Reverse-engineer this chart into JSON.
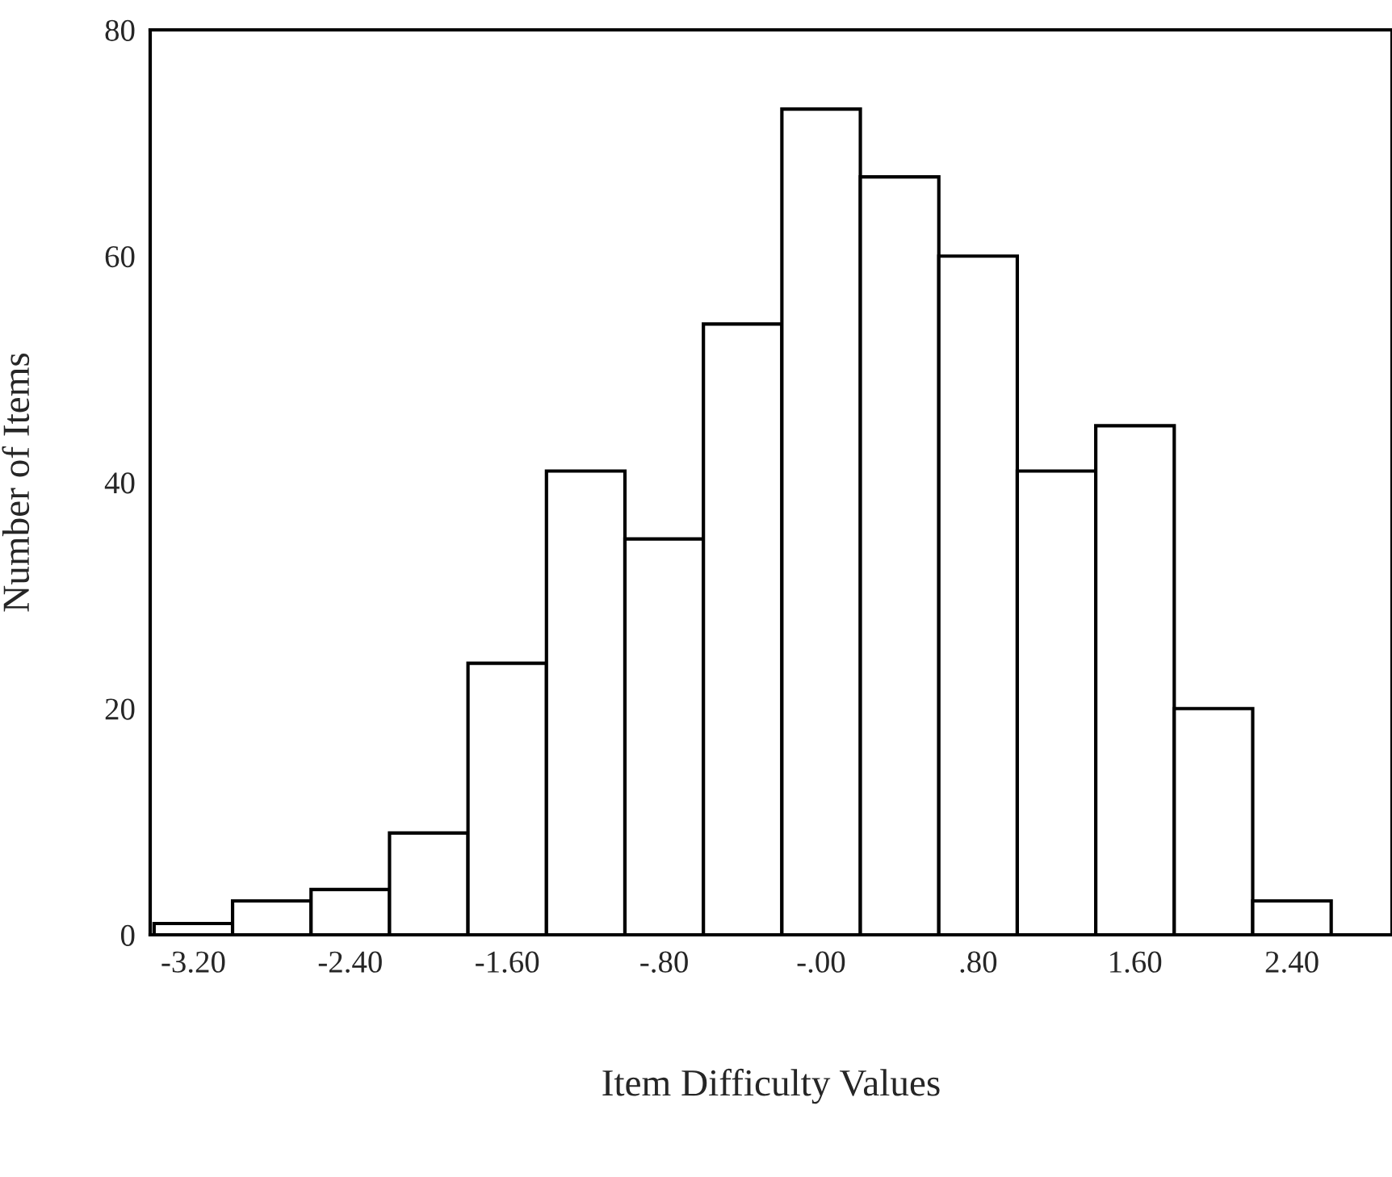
{
  "chart_data": {
    "type": "histogram",
    "xlabel": "Item Difficulty Values",
    "ylabel": "Number of Items",
    "bins": [
      -3.4,
      -3.0,
      -2.6,
      -2.2,
      -1.8,
      -1.4,
      -1.0,
      -0.6,
      -0.2,
      0.2,
      0.6,
      1.0,
      1.4,
      1.8,
      2.2,
      2.6
    ],
    "values": [
      1,
      3,
      4,
      9,
      24,
      41,
      35,
      54,
      73,
      67,
      60,
      41,
      45,
      20,
      3
    ],
    "color": "#ffffff",
    "xlim": [
      -3.42,
      2.91
    ],
    "ylim": [
      0,
      80
    ],
    "xticks": [
      {
        "value": -3.2,
        "label": "-3.20"
      },
      {
        "value": -2.4,
        "label": "-2.40"
      },
      {
        "value": -1.6,
        "label": "-1.60"
      },
      {
        "value": -0.8,
        "label": "-.80"
      },
      {
        "value": 0,
        "label": "-.00"
      },
      {
        "value": 0.8,
        "label": ".80"
      },
      {
        "value": 1.6,
        "label": "1.60"
      },
      {
        "value": 2.4,
        "label": "2.40"
      }
    ],
    "yticks": [
      0,
      20,
      40,
      60,
      80
    ],
    "grid": false
  }
}
